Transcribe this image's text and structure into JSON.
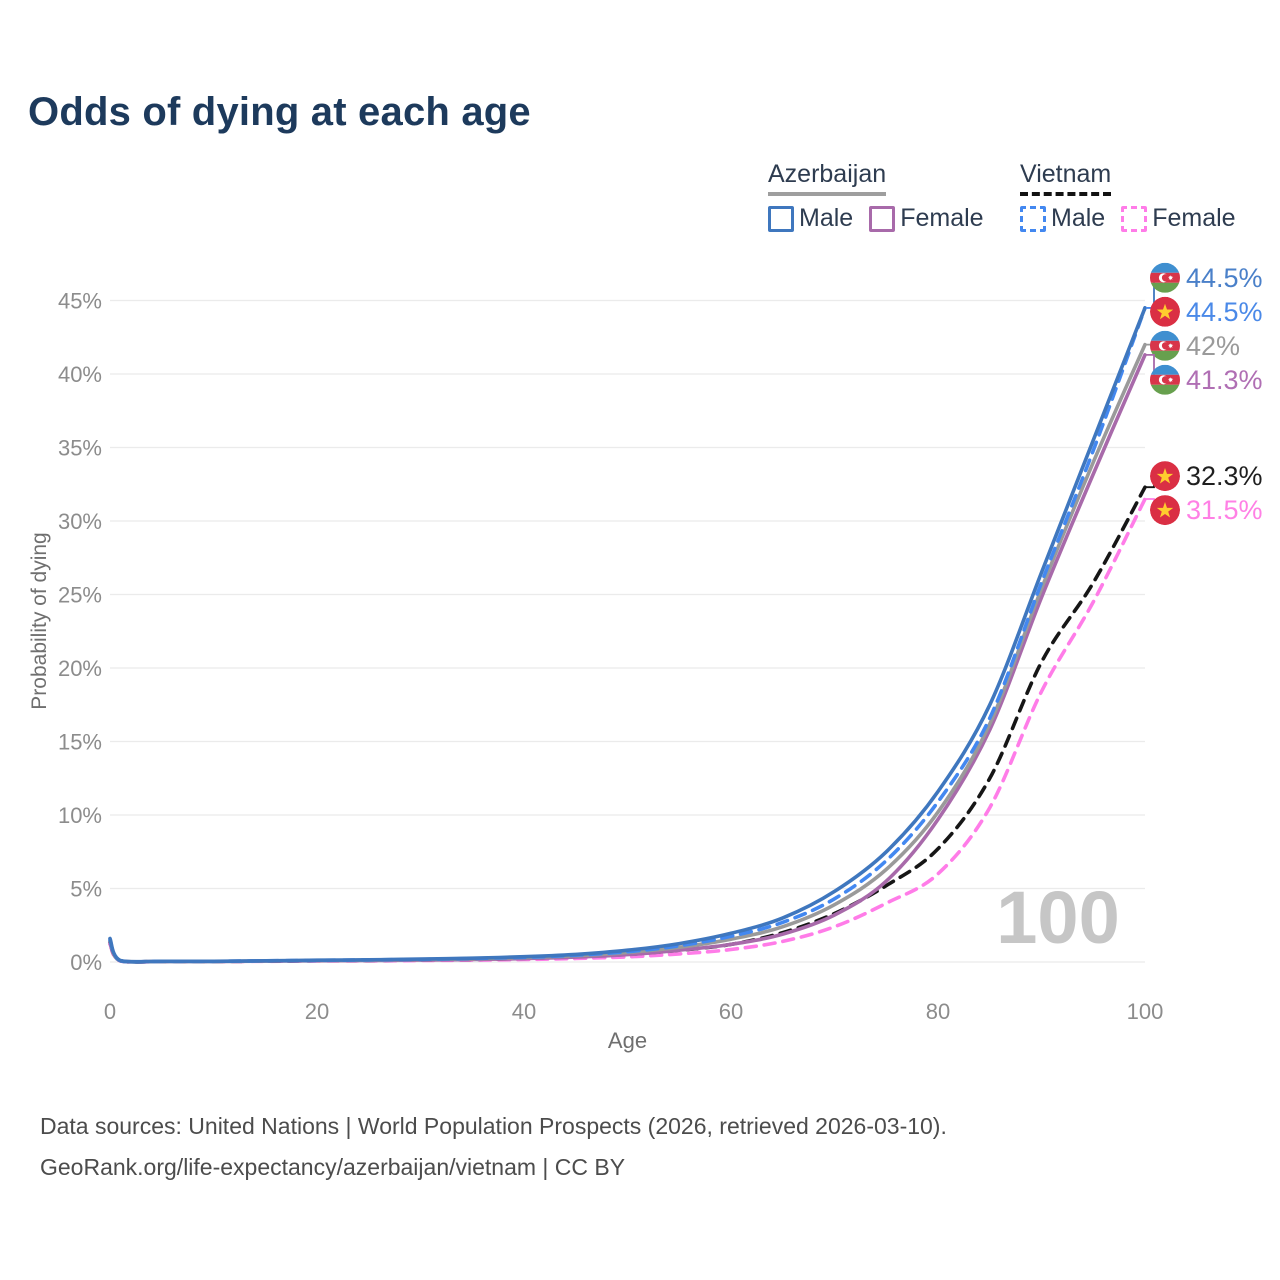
{
  "title": "Odds of dying at each age",
  "legend": {
    "groups": [
      {
        "country": "Azerbaijan",
        "line_style": "solid",
        "underline_color": "#9e9e9e",
        "items": [
          {
            "label": "Male",
            "color": "#3f77be"
          },
          {
            "label": "Female",
            "color": "#a86aaa"
          }
        ]
      },
      {
        "country": "Vietnam",
        "line_style": "dashed",
        "underline_color": "#121212",
        "items": [
          {
            "label": "Male",
            "color": "#4388f0"
          },
          {
            "label": "Female",
            "color": "#ff7ce8"
          }
        ]
      }
    ]
  },
  "chart_data": {
    "type": "line",
    "title": "Odds of dying at each age",
    "xlabel": "Age",
    "ylabel": "Probability of dying",
    "xlim": [
      0,
      100
    ],
    "ylim_percent": [
      0,
      47
    ],
    "x_ticks": [
      0,
      20,
      40,
      60,
      80,
      100
    ],
    "y_ticks_percent": [
      0,
      5,
      10,
      15,
      20,
      25,
      30,
      35,
      40,
      45
    ],
    "grid": "horizontal",
    "legend_position": "top-right",
    "watermark": "100",
    "x_ages": [
      0,
      1,
      5,
      10,
      15,
      20,
      25,
      30,
      35,
      40,
      45,
      50,
      55,
      60,
      65,
      70,
      75,
      80,
      85,
      90,
      95,
      100
    ],
    "series": [
      {
        "name": "Azerbaijan Male",
        "country": "Azerbaijan",
        "sex": "Male",
        "flag": "azerbaijan",
        "color": "#3f77be",
        "dash": "solid",
        "end_label": "44.5%",
        "label_color": "#4a80c9",
        "values_percent": [
          1.6,
          0.1,
          0.05,
          0.05,
          0.08,
          0.12,
          0.15,
          0.2,
          0.26,
          0.36,
          0.52,
          0.8,
          1.25,
          1.95,
          3.0,
          4.8,
          7.5,
          11.6,
          17.5,
          26.5,
          35.5,
          44.5
        ]
      },
      {
        "name": "Vietnam Male",
        "country": "Vietnam",
        "sex": "Male",
        "flag": "vietnam",
        "color": "#4388f0",
        "dash": "dashed",
        "end_label": "44.5%",
        "label_color": "#4a89e8",
        "values_percent": [
          1.5,
          0.09,
          0.05,
          0.05,
          0.08,
          0.11,
          0.14,
          0.18,
          0.24,
          0.32,
          0.46,
          0.7,
          1.1,
          1.75,
          2.7,
          4.3,
          6.9,
          10.9,
          16.6,
          25.8,
          34.8,
          44.5
        ]
      },
      {
        "name": "Azerbaijan",
        "country": "Azerbaijan",
        "sex": "All",
        "flag": "azerbaijan",
        "color": "#9a9a9a",
        "dash": "solid",
        "end_label": "42%",
        "label_color": "#9a9a9a",
        "values_percent": [
          1.45,
          0.09,
          0.04,
          0.04,
          0.07,
          0.1,
          0.13,
          0.17,
          0.22,
          0.3,
          0.43,
          0.65,
          1.0,
          1.55,
          2.4,
          3.9,
          6.3,
          10.2,
          16.2,
          25.4,
          34.0,
          42.0
        ]
      },
      {
        "name": "Azerbaijan Female",
        "country": "Azerbaijan",
        "sex": "Female",
        "flag": "azerbaijan",
        "color": "#a86aaa",
        "dash": "solid",
        "end_label": "41.3%",
        "label_color": "#b06fb4",
        "values_percent": [
          1.3,
          0.08,
          0.04,
          0.04,
          0.06,
          0.08,
          0.1,
          0.13,
          0.17,
          0.23,
          0.33,
          0.5,
          0.8,
          1.2,
          1.9,
          3.2,
          5.5,
          9.7,
          15.8,
          24.8,
          33.2,
          41.3
        ]
      },
      {
        "name": "Vietnam",
        "country": "Vietnam",
        "sex": "All",
        "flag": "vietnam",
        "color": "#161616",
        "dash": "dashed",
        "end_label": "32.3%",
        "label_color": "#1f1f1f",
        "values_percent": [
          1.35,
          0.08,
          0.04,
          0.04,
          0.06,
          0.09,
          0.11,
          0.14,
          0.18,
          0.25,
          0.36,
          0.52,
          0.8,
          1.2,
          2.0,
          3.3,
          5.2,
          7.7,
          12.5,
          20.4,
          25.8,
          32.3
        ]
      },
      {
        "name": "Vietnam Female",
        "country": "Vietnam",
        "sex": "Female",
        "flag": "vietnam",
        "color": "#ff7ce8",
        "dash": "dashed",
        "end_label": "31.5%",
        "label_color": "#ff80e5",
        "values_percent": [
          1.2,
          0.07,
          0.03,
          0.03,
          0.05,
          0.07,
          0.08,
          0.1,
          0.13,
          0.17,
          0.24,
          0.35,
          0.55,
          0.85,
          1.4,
          2.4,
          4.0,
          6.0,
          10.5,
          18.4,
          24.5,
          31.5
        ]
      }
    ]
  },
  "footer": {
    "line1": "Data sources: United Nations | World Population Prospects (2026, retrieved 2026-03-10).",
    "line2": "GeoRank.org/life-expectancy/azerbaijan/vietnam | CC BY"
  },
  "colors": {
    "title": "#1d3a5c",
    "axis_text": "#8c8c8c",
    "axis_title": "#6f6f6f",
    "gridline": "#ebebeb",
    "watermark": "#c6c6c6",
    "footer_text": "#4c4c4c",
    "azerbaijan_flag": {
      "blue": "#3f8fd0",
      "red": "#d8354a",
      "green": "#67a04e"
    },
    "vietnam_flag": {
      "red": "#da2f44",
      "star": "#ffcd2e"
    }
  }
}
